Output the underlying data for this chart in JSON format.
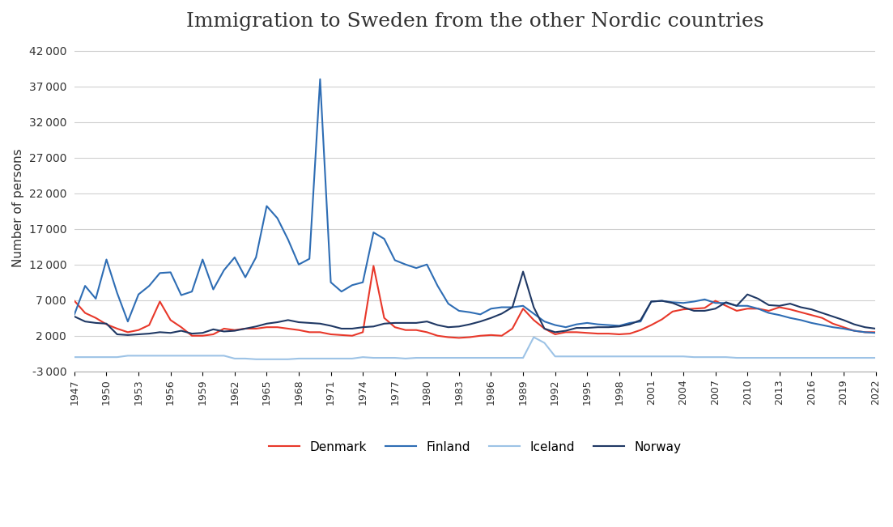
{
  "title": "Immigration to Sweden from the other Nordic countries",
  "ylabel": "Number of persons",
  "ylim": [
    -3000,
    43000
  ],
  "yticks": [
    -3000,
    2000,
    7000,
    12000,
    17000,
    22000,
    27000,
    32000,
    37000,
    42000
  ],
  "background_color": "#ffffff",
  "plot_background": "#ffffff",
  "grid_color": "#d0d0d0",
  "years": [
    1947,
    1948,
    1949,
    1950,
    1951,
    1952,
    1953,
    1954,
    1955,
    1956,
    1957,
    1958,
    1959,
    1960,
    1961,
    1962,
    1963,
    1964,
    1965,
    1966,
    1967,
    1968,
    1969,
    1970,
    1971,
    1972,
    1973,
    1974,
    1975,
    1976,
    1977,
    1978,
    1979,
    1980,
    1981,
    1982,
    1983,
    1984,
    1985,
    1986,
    1987,
    1988,
    1989,
    1990,
    1991,
    1992,
    1993,
    1994,
    1995,
    1996,
    1997,
    1998,
    1999,
    2000,
    2001,
    2002,
    2003,
    2004,
    2005,
    2006,
    2007,
    2008,
    2009,
    2010,
    2011,
    2012,
    2013,
    2014,
    2015,
    2016,
    2017,
    2018,
    2019,
    2020,
    2021,
    2022
  ],
  "denmark": [
    6900,
    5200,
    4500,
    3600,
    3000,
    2500,
    2800,
    3500,
    6800,
    4200,
    3200,
    2000,
    2000,
    2200,
    3000,
    2800,
    3000,
    3000,
    3200,
    3200,
    3000,
    2800,
    2500,
    2500,
    2200,
    2100,
    2000,
    2500,
    11800,
    4500,
    3200,
    2800,
    2800,
    2500,
    2000,
    1800,
    1700,
    1800,
    2000,
    2100,
    2000,
    3000,
    5800,
    4200,
    3000,
    2200,
    2500,
    2500,
    2400,
    2300,
    2300,
    2200,
    2300,
    2800,
    3500,
    4300,
    5400,
    5700,
    5800,
    5900,
    6900,
    6200,
    5500,
    5800,
    5800,
    5500,
    6000,
    5700,
    5300,
    4900,
    4500,
    3700,
    3200,
    2700,
    2500,
    2500
  ],
  "finland": [
    5000,
    9000,
    7200,
    12700,
    8000,
    4000,
    7800,
    9000,
    10800,
    10900,
    7700,
    8200,
    12700,
    8500,
    11200,
    13000,
    10200,
    13000,
    20200,
    18500,
    15500,
    12000,
    12800,
    38000,
    9500,
    8200,
    9100,
    9500,
    16500,
    15600,
    12600,
    12000,
    11500,
    12000,
    9000,
    6500,
    5500,
    5300,
    5000,
    5800,
    6000,
    6000,
    6200,
    5100,
    4000,
    3500,
    3200,
    3600,
    3800,
    3600,
    3500,
    3400,
    3800,
    4000,
    6800,
    6900,
    6700,
    6600,
    6800,
    7100,
    6600,
    6600,
    6200,
    6200,
    5800,
    5200,
    4900,
    4500,
    4200,
    3800,
    3500,
    3200,
    3000,
    2700,
    2500,
    2400
  ],
  "iceland": [
    -1000,
    -1000,
    -1000,
    -1000,
    -1000,
    -800,
    -800,
    -800,
    -800,
    -800,
    -800,
    -800,
    -800,
    -800,
    -800,
    -1200,
    -1200,
    -1300,
    -1300,
    -1300,
    -1300,
    -1200,
    -1200,
    -1200,
    -1200,
    -1200,
    -1200,
    -1000,
    -1100,
    -1100,
    -1100,
    -1200,
    -1100,
    -1100,
    -1100,
    -1100,
    -1100,
    -1100,
    -1100,
    -1100,
    -1100,
    -1100,
    -1100,
    1800,
    1000,
    -900,
    -900,
    -900,
    -900,
    -900,
    -900,
    -900,
    -900,
    -900,
    -900,
    -900,
    -900,
    -900,
    -1000,
    -1000,
    -1000,
    -1000,
    -1100,
    -1100,
    -1100,
    -1100,
    -1100,
    -1100,
    -1100,
    -1100,
    -1100,
    -1100,
    -1100,
    -1100,
    -1100,
    -1100
  ],
  "norway": [
    4700,
    4000,
    3800,
    3700,
    2200,
    2100,
    2200,
    2300,
    2500,
    2400,
    2700,
    2300,
    2400,
    2900,
    2600,
    2700,
    3000,
    3300,
    3700,
    3900,
    4200,
    3900,
    3800,
    3700,
    3400,
    3000,
    3000,
    3200,
    3300,
    3700,
    3800,
    3800,
    3800,
    4000,
    3500,
    3200,
    3300,
    3600,
    4000,
    4500,
    5100,
    6000,
    11000,
    6000,
    3000,
    2500,
    2700,
    3100,
    3100,
    3200,
    3200,
    3300,
    3600,
    4200,
    6800,
    6900,
    6600,
    6000,
    5500,
    5500,
    5800,
    6700,
    6200,
    7800,
    7200,
    6300,
    6200,
    6500,
    6000,
    5700,
    5200,
    4700,
    4200,
    3600,
    3200,
    3000
  ],
  "denmark_color": "#e8382a",
  "finland_color": "#2e6db4",
  "iceland_color": "#9dc3e6",
  "norway_color": "#1f3864",
  "legend_labels": [
    "Denmark",
    "Finland",
    "Iceland",
    "Norway"
  ]
}
